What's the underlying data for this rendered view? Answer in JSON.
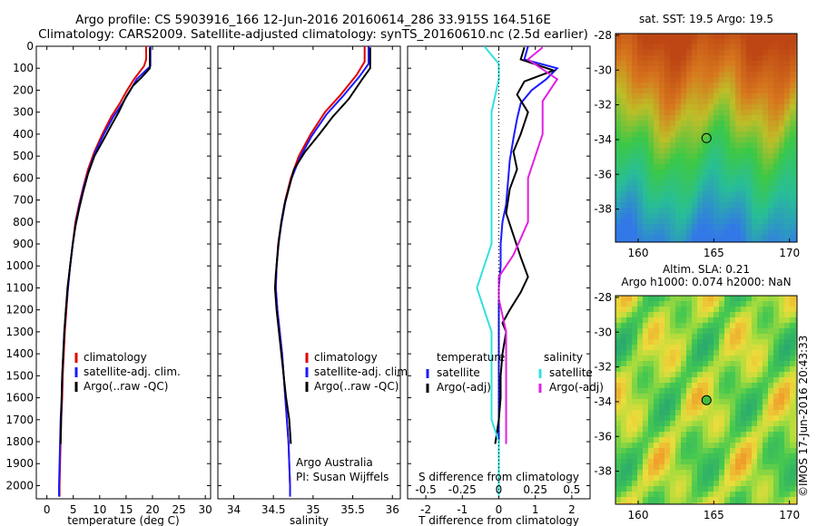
{
  "header": {
    "line1": "Argo profile: CS 5903916_166 12-Jun-2016 20160614_286 33.915S 164.516E",
    "line2": "Climatology: CARS2009. Satellite-adjusted climatology: synTS_20160610.nc (2.5d earlier)"
  },
  "colors": {
    "climatology": "#e00000",
    "satellite": "#1a1aff",
    "argo": "#000000",
    "salinity_sat": "#33e0e0",
    "salinity_argo": "#e020e0"
  },
  "chart_data": [
    {
      "type": "line",
      "xlabel": "temperature (deg C)",
      "xlim": [
        -2,
        31
      ],
      "xticks": [
        0,
        5,
        10,
        15,
        20,
        25,
        30
      ],
      "ylim": [
        2060,
        0
      ],
      "yticks": [
        0,
        100,
        200,
        300,
        400,
        500,
        600,
        700,
        800,
        900,
        1000,
        1100,
        1200,
        1300,
        1400,
        1500,
        1600,
        1700,
        1800,
        1900,
        2000
      ],
      "legend": [
        "climatology",
        "satellite-adj. clim.",
        "Argo(..raw -QC)"
      ],
      "legend_placement": "lower-center",
      "series": [
        {
          "name": "climatology",
          "color": "#e00000",
          "points": [
            [
              18.8,
              0
            ],
            [
              18.8,
              60
            ],
            [
              18.4,
              90
            ],
            [
              16.5,
              150
            ],
            [
              15.2,
              200
            ],
            [
              13.8,
              260
            ],
            [
              12.2,
              320
            ],
            [
              10.5,
              400
            ],
            [
              9.0,
              480
            ],
            [
              7.8,
              560
            ],
            [
              6.9,
              640
            ],
            [
              6.1,
              720
            ],
            [
              5.4,
              800
            ],
            [
              4.9,
              900
            ],
            [
              4.4,
              1000
            ],
            [
              4.0,
              1100
            ],
            [
              3.7,
              1200
            ],
            [
              3.4,
              1300
            ],
            [
              3.2,
              1400
            ],
            [
              3.0,
              1500
            ],
            [
              2.9,
              1600
            ],
            [
              2.7,
              1700
            ],
            [
              2.6,
              1800
            ],
            [
              2.5,
              1900
            ],
            [
              2.4,
              2000
            ],
            [
              2.4,
              2050
            ]
          ]
        },
        {
          "name": "satellite-adj. clim.",
          "color": "#1a1aff",
          "points": [
            [
              19.6,
              0
            ],
            [
              19.6,
              90
            ],
            [
              17.0,
              150
            ],
            [
              15.8,
              200
            ],
            [
              14.3,
              260
            ],
            [
              12.6,
              320
            ],
            [
              10.8,
              400
            ],
            [
              9.2,
              480
            ],
            [
              8.0,
              560
            ],
            [
              7.0,
              640
            ],
            [
              6.2,
              720
            ],
            [
              5.5,
              800
            ],
            [
              4.9,
              900
            ],
            [
              4.4,
              1000
            ],
            [
              4.0,
              1100
            ],
            [
              3.6,
              1200
            ],
            [
              3.3,
              1300
            ],
            [
              3.1,
              1400
            ],
            [
              2.9,
              1500
            ],
            [
              2.8,
              1600
            ],
            [
              2.6,
              1700
            ],
            [
              2.5,
              1800
            ],
            [
              2.4,
              1900
            ],
            [
              2.3,
              2000
            ],
            [
              2.3,
              2050
            ]
          ]
        },
        {
          "name": "Argo(..raw -QC)",
          "color": "#000000",
          "points": [
            [
              19.5,
              5
            ],
            [
              19.5,
              100
            ],
            [
              18.0,
              140
            ],
            [
              16.3,
              180
            ],
            [
              15.0,
              230
            ],
            [
              13.6,
              300
            ],
            [
              12.2,
              360
            ],
            [
              10.4,
              440
            ],
            [
              9.0,
              500
            ],
            [
              7.8,
              580
            ],
            [
              6.9,
              660
            ],
            [
              6.1,
              740
            ],
            [
              5.4,
              820
            ],
            [
              4.9,
              900
            ],
            [
              4.4,
              1000
            ],
            [
              3.9,
              1100
            ],
            [
              3.6,
              1200
            ],
            [
              3.3,
              1300
            ],
            [
              3.1,
              1400
            ],
            [
              2.9,
              1500
            ],
            [
              2.8,
              1600
            ],
            [
              2.7,
              1700
            ],
            [
              2.6,
              1810
            ]
          ]
        }
      ]
    },
    {
      "type": "line",
      "xlabel": "salinity",
      "xlim": [
        33.8,
        36.1
      ],
      "xticks": [
        34,
        34.5,
        35,
        35.5,
        36
      ],
      "xtick_labels": [
        "34",
        "34.5",
        "35",
        "35.5",
        "36"
      ],
      "ylim": [
        2060,
        0
      ],
      "legend": [
        "climatology",
        "satellite-adj. clim.",
        "Argo(..raw -QC)"
      ],
      "legend_placement": "lower-right",
      "annotation": [
        "Argo Australia",
        "PI: Susan Wijffels"
      ],
      "series": [
        {
          "name": "climatology",
          "color": "#e00000",
          "points": [
            [
              35.65,
              0
            ],
            [
              35.65,
              70
            ],
            [
              35.55,
              130
            ],
            [
              35.35,
              220
            ],
            [
              35.15,
              300
            ],
            [
              34.97,
              400
            ],
            [
              34.82,
              500
            ],
            [
              34.72,
              600
            ],
            [
              34.65,
              700
            ],
            [
              34.6,
              800
            ],
            [
              34.56,
              900
            ],
            [
              34.54,
              1000
            ],
            [
              34.53,
              1100
            ],
            [
              34.55,
              1200
            ],
            [
              34.58,
              1300
            ],
            [
              34.61,
              1400
            ],
            [
              34.63,
              1500
            ],
            [
              34.65,
              1600
            ],
            [
              34.67,
              1700
            ],
            [
              34.69,
              1800
            ],
            [
              34.7,
              1900
            ],
            [
              34.71,
              2000
            ],
            [
              34.71,
              2050
            ]
          ]
        },
        {
          "name": "satellite-adj. clim.",
          "color": "#1a1aff",
          "points": [
            [
              35.7,
              0
            ],
            [
              35.7,
              80
            ],
            [
              35.58,
              140
            ],
            [
              35.37,
              230
            ],
            [
              35.17,
              310
            ],
            [
              34.98,
              410
            ],
            [
              34.83,
              510
            ],
            [
              34.72,
              610
            ],
            [
              34.65,
              710
            ],
            [
              34.6,
              810
            ],
            [
              34.56,
              910
            ],
            [
              34.54,
              1000
            ],
            [
              34.53,
              1100
            ],
            [
              34.55,
              1200
            ],
            [
              34.58,
              1300
            ],
            [
              34.61,
              1400
            ],
            [
              34.63,
              1500
            ],
            [
              34.65,
              1600
            ],
            [
              34.67,
              1700
            ],
            [
              34.69,
              1800
            ],
            [
              34.7,
              1900
            ],
            [
              34.71,
              2000
            ],
            [
              34.71,
              2050
            ]
          ]
        },
        {
          "name": "Argo(..raw -QC)",
          "color": "#000000",
          "points": [
            [
              35.72,
              5
            ],
            [
              35.72,
              100
            ],
            [
              35.62,
              150
            ],
            [
              35.45,
              240
            ],
            [
              35.25,
              320
            ],
            [
              35.08,
              400
            ],
            [
              34.9,
              480
            ],
            [
              34.76,
              560
            ],
            [
              34.7,
              640
            ],
            [
              34.64,
              720
            ],
            [
              34.6,
              800
            ],
            [
              34.57,
              880
            ],
            [
              34.55,
              960
            ],
            [
              34.53,
              1040
            ],
            [
              34.52,
              1100
            ],
            [
              34.54,
              1200
            ],
            [
              34.57,
              1300
            ],
            [
              34.6,
              1400
            ],
            [
              34.63,
              1500
            ],
            [
              34.66,
              1600
            ],
            [
              34.7,
              1700
            ],
            [
              34.72,
              1810
            ]
          ]
        }
      ]
    },
    {
      "type": "line",
      "xlabel": "T difference from climatology",
      "xlabel_top": "S difference from climatology",
      "xlim": [
        -2.5,
        2.5
      ],
      "xticks": [
        -2,
        -1,
        0,
        1,
        2
      ],
      "xtick_labels": [
        "-2",
        "-1",
        "0",
        "1",
        "2"
      ],
      "xticks_top": [
        -0.5,
        -0.25,
        0,
        0.25,
        0.5
      ],
      "xtick_labels_top": [
        "-0.5",
        "-0.25",
        "0",
        "0.25",
        "0.5"
      ],
      "ylim": [
        2060,
        0
      ],
      "legend_left_title": "temperature",
      "legend_right_title": "salinity",
      "legend_left": [
        "satellite",
        "Argo(-adj)"
      ],
      "legend_right": [
        "satellite",
        "Argo(-adj)"
      ],
      "series": [
        {
          "name": "temperature satellite",
          "color": "#1a1aff",
          "points": [
            [
              0.8,
              0
            ],
            [
              0.7,
              60
            ],
            [
              1.6,
              100
            ],
            [
              1.3,
              150
            ],
            [
              0.9,
              200
            ],
            [
              0.6,
              260
            ],
            [
              0.5,
              330
            ],
            [
              0.4,
              420
            ],
            [
              0.3,
              520
            ],
            [
              0.25,
              620
            ],
            [
              0.2,
              720
            ],
            [
              0.1,
              800
            ],
            [
              0.05,
              900
            ],
            [
              0.05,
              1000
            ],
            [
              0.0,
              1100
            ],
            [
              0.0,
              1200
            ],
            [
              0.0,
              1300
            ],
            [
              0.0,
              1400
            ],
            [
              0.0,
              1500
            ],
            [
              0.0,
              1600
            ],
            [
              0.0,
              1700
            ],
            [
              0.0,
              1800
            ],
            [
              0.0,
              1900
            ],
            [
              0.0,
              2000
            ],
            [
              0.0,
              2050
            ]
          ]
        },
        {
          "name": "temperature Argo(-adj)",
          "color": "#000000",
          "points": [
            [
              0.7,
              5
            ],
            [
              0.6,
              60
            ],
            [
              1.5,
              110
            ],
            [
              0.7,
              160
            ],
            [
              0.5,
              220
            ],
            [
              0.8,
              300
            ],
            [
              0.6,
              400
            ],
            [
              0.4,
              480
            ],
            [
              0.5,
              560
            ],
            [
              0.3,
              650
            ],
            [
              0.2,
              760
            ],
            [
              0.4,
              860
            ],
            [
              0.6,
              960
            ],
            [
              0.8,
              1050
            ],
            [
              0.6,
              1120
            ],
            [
              0.3,
              1200
            ],
            [
              0.1,
              1260
            ],
            [
              0.2,
              1300
            ],
            [
              0.1,
              1400
            ],
            [
              0.05,
              1500
            ],
            [
              0.05,
              1600
            ],
            [
              0.0,
              1700
            ],
            [
              -0.1,
              1810
            ]
          ]
        },
        {
          "name": "salinity satellite",
          "color": "#33e0e0",
          "points": [
            [
              -0.1,
              0
            ],
            [
              0.0,
              80
            ],
            [
              0.0,
              150
            ],
            [
              -0.05,
              300
            ],
            [
              -0.05,
              500
            ],
            [
              -0.05,
              700
            ],
            [
              -0.05,
              900
            ],
            [
              -0.1,
              1000
            ],
            [
              -0.15,
              1100
            ],
            [
              -0.1,
              1200
            ],
            [
              -0.05,
              1300
            ],
            [
              -0.05,
              1400
            ],
            [
              -0.05,
              1500
            ],
            [
              -0.05,
              1600
            ],
            [
              -0.05,
              1700
            ],
            [
              0.0,
              1800
            ],
            [
              0.0,
              1900
            ],
            [
              0.0,
              2000
            ],
            [
              0.0,
              2050
            ]
          ]
        },
        {
          "name": "salinity Argo(-adj)",
          "color": "#e020e0",
          "points": [
            [
              0.3,
              5
            ],
            [
              0.2,
              60
            ],
            [
              0.4,
              150
            ],
            [
              0.3,
              250
            ],
            [
              0.3,
              400
            ],
            [
              0.2,
              600
            ],
            [
              0.2,
              800
            ],
            [
              0.1,
              950
            ],
            [
              0.0,
              1050
            ],
            [
              0.0,
              1150
            ],
            [
              0.05,
              1300
            ],
            [
              0.05,
              1500
            ],
            [
              0.05,
              1700
            ],
            [
              0.05,
              1810
            ]
          ]
        }
      ]
    },
    {
      "type": "heatmap",
      "title": "sat. SST: 19.5  Argo: 19.5",
      "xlim": [
        158.5,
        170.5
      ],
      "xticks": [
        160,
        165,
        170
      ],
      "ylim": [
        -39.9,
        -27.9
      ],
      "yticks": [
        -28,
        -30,
        -32,
        -34,
        -36,
        -38
      ],
      "marker": [
        164.516,
        -33.915
      ]
    },
    {
      "type": "heatmap",
      "title_line1": "Altim. SLA: 0.21",
      "title_line2": "Argo h1000: 0.074 h2000: NaN",
      "xlim": [
        158.5,
        170.5
      ],
      "xticks": [
        160,
        165,
        170
      ],
      "ylim": [
        -39.9,
        -27.9
      ],
      "yticks": [
        -28,
        -30,
        -32,
        -34,
        -36,
        -38
      ],
      "marker": [
        164.516,
        -33.915
      ]
    }
  ],
  "stamp": "©IMOS 17-Jun-2016 20:43:33"
}
